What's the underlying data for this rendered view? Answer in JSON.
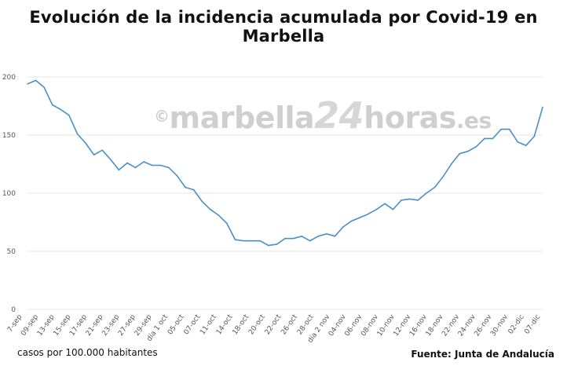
{
  "title": "Evolución de la incidencia acumulada por Covid-19 en Marbella",
  "watermark": {
    "copy": "©",
    "part1": "marbella",
    "part2": "24",
    "part3": "horas",
    "part4": ".es"
  },
  "footer": {
    "units_note": "casos por 100.000 habitantes",
    "source": "Fuente: Junta de Andalucía"
  },
  "colors": {
    "line": "#4a90c8",
    "grid": "#e6e6e6",
    "axis_text": "#555555"
  },
  "chart_data": {
    "type": "line",
    "title": "Evolución de la incidencia acumulada por Covid-19 en Marbella",
    "xlabel": "",
    "ylabel": "casos por 100.000 habitantes",
    "ylim": [
      0,
      200
    ],
    "yticks": [
      0,
      50,
      100,
      150,
      200
    ],
    "grid": true,
    "x_tick_labels": [
      "7-sep",
      "09-sep",
      "13-sep",
      "15-sep",
      "17-sep",
      "21-sep",
      "23-sep",
      "27-sep",
      "29-sep",
      "día 1 oct",
      "05-oct",
      "07-oct",
      "11-oct",
      "14-oct",
      "18-oct",
      "20-oct",
      "22-oct",
      "26-oct",
      "28-oct",
      "día 2 nov",
      "04-nov",
      "06-nov",
      "08-nov",
      "10-nov",
      "12-nov",
      "16-nov",
      "18-nov",
      "22-nov",
      "24-nov",
      "26-nov",
      "30-nov",
      "02-dic",
      "07-dic"
    ],
    "series": [
      {
        "values": [
          194,
          197,
          191,
          176,
          172,
          167,
          151,
          143,
          133,
          137,
          129,
          120,
          126,
          122,
          127,
          124,
          124,
          122,
          115,
          105,
          103,
          93,
          86,
          81,
          74,
          60,
          59,
          59,
          59,
          55,
          56,
          61,
          61,
          63,
          59,
          63,
          65,
          63,
          71,
          76,
          79,
          82,
          86,
          91,
          86,
          94,
          95,
          94,
          100,
          105,
          114,
          125,
          134,
          136,
          140,
          147,
          147,
          155,
          155,
          144,
          141,
          149,
          174
        ]
      }
    ]
  }
}
